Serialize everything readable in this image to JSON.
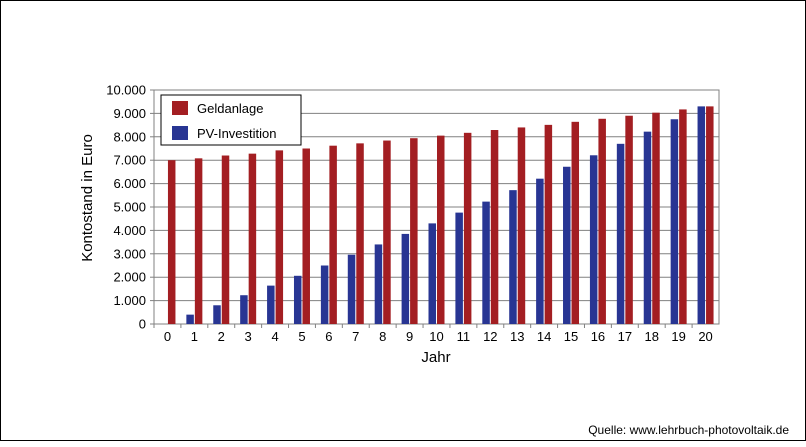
{
  "chart_data": {
    "type": "bar",
    "xlabel": "Jahr",
    "ylabel": "Kontostand  in Euro",
    "ylim": [
      0,
      10000
    ],
    "yticks": [
      0,
      1000,
      2000,
      3000,
      4000,
      5000,
      6000,
      7000,
      8000,
      9000,
      10000
    ],
    "ytick_labels": [
      "0",
      "1.000",
      "2.000",
      "3.000",
      "4.000",
      "5.000",
      "6.000",
      "7.000",
      "8.000",
      "9.000",
      "10.000"
    ],
    "categories": [
      "0",
      "1",
      "2",
      "3",
      "4",
      "5",
      "6",
      "7",
      "8",
      "9",
      "10",
      "11",
      "12",
      "13",
      "14",
      "15",
      "16",
      "17",
      "18",
      "19",
      "20"
    ],
    "grid": true,
    "legend_position": "top-left",
    "series": [
      {
        "name": "Geldanlage",
        "color": "#a31e22",
        "values": [
          7000,
          7080,
          7200,
          7280,
          7420,
          7500,
          7620,
          7720,
          7840,
          7940,
          8050,
          8170,
          8290,
          8400,
          8510,
          8640,
          8770,
          8900,
          9030,
          9170,
          9300
        ]
      },
      {
        "name": "PV-Investition",
        "color": "#283593",
        "values": [
          0,
          400,
          800,
          1230,
          1640,
          2060,
          2500,
          2960,
          3400,
          3850,
          4300,
          4760,
          5230,
          5720,
          6210,
          6720,
          7210,
          7700,
          8220,
          8750,
          9300
        ]
      }
    ]
  },
  "source_text": "Quelle: www.lehrbuch-photovoltaik.de"
}
